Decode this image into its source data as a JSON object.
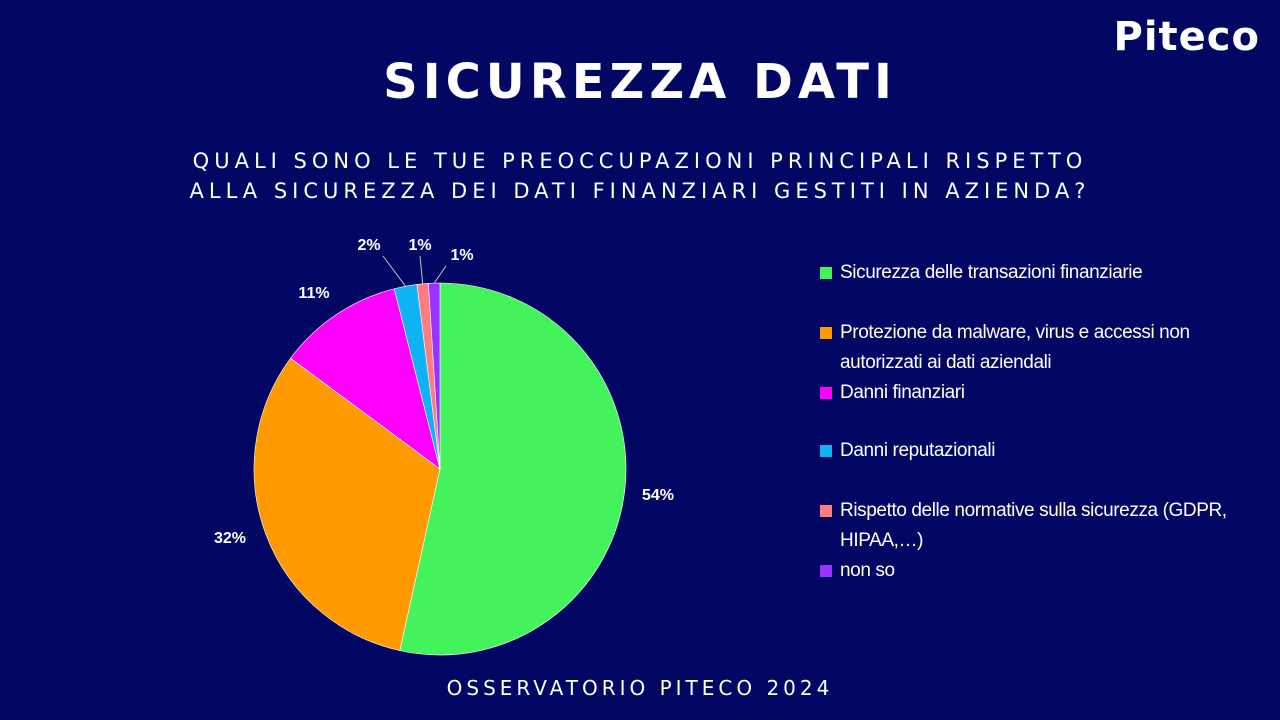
{
  "logo": "Piteco",
  "title": "SICUREZZA DATI",
  "subtitle": {
    "line1": "QUALI SONO LE TUE PREOCCUPAZIONI PRINCIPALI RISPETTO",
    "line2": "ALLA SICUREZZA DEI DATI FINANZIARI GESTITI IN AZIENDA?"
  },
  "footer": "OSSERVATORIO PITECO 2024",
  "chart_data": {
    "type": "pie",
    "title": "",
    "categories": [
      "Sicurezza delle transazioni finanziarie",
      "Protezione da malware, virus e accessi non autorizzati ai dati aziendali",
      "Danni finanziari",
      "Danni reputazionali",
      "Rispetto delle normative sulla sicurezza (GDPR, HIPAA,…)",
      "non so"
    ],
    "values": [
      54,
      32,
      11,
      2,
      1,
      1
    ],
    "labels": [
      "54%",
      "32%",
      "11%",
      "2%",
      "1%",
      "1%"
    ],
    "colors": [
      "#44F35B",
      "#FF9B00",
      "#FF00FF",
      "#0FB2F2",
      "#FF7C80",
      "#9933FF"
    ],
    "legend_position": "right",
    "start": "top",
    "direction": "clockwise"
  }
}
